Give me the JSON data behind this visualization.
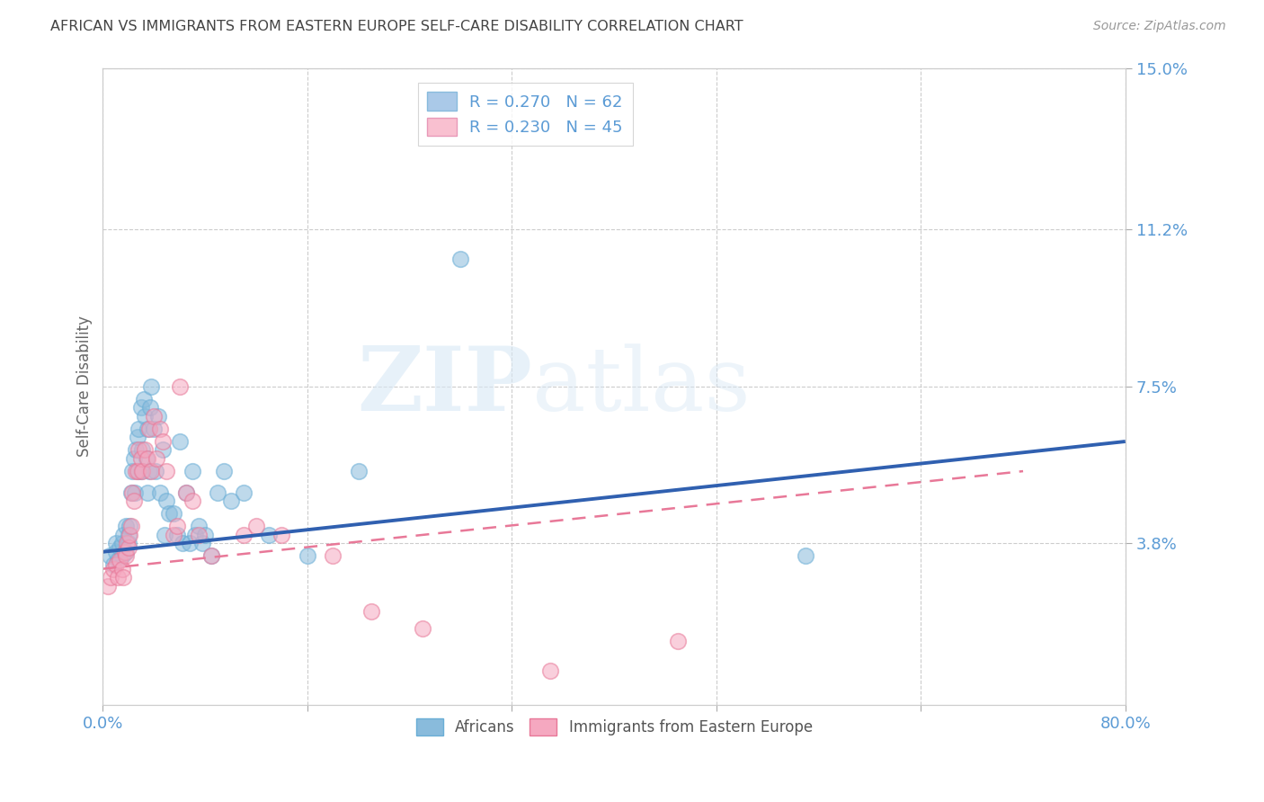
{
  "title": "AFRICAN VS IMMIGRANTS FROM EASTERN EUROPE SELF-CARE DISABILITY CORRELATION CHART",
  "source": "Source: ZipAtlas.com",
  "ylabel": "Self-Care Disability",
  "xmin": 0.0,
  "xmax": 0.8,
  "ymin": 0.0,
  "ymax": 0.15,
  "yticks": [
    0.038,
    0.075,
    0.112,
    0.15
  ],
  "ytick_labels": [
    "3.8%",
    "7.5%",
    "11.2%",
    "15.0%"
  ],
  "xticks": [
    0.0,
    0.16,
    0.32,
    0.48,
    0.64,
    0.8
  ],
  "xtick_labels": [
    "0.0%",
    "",
    "",
    "",
    "",
    "80.0%"
  ],
  "watermark_zip": "ZIP",
  "watermark_atlas": "atlas",
  "legend_label1": "R = 0.270   N = 62",
  "legend_label2": "R = 0.230   N = 45",
  "legend_color1": "#aac9e8",
  "legend_color2": "#f9c0d0",
  "series1_label": "Africans",
  "series2_label": "Immigrants from Eastern Europe",
  "series1_color": "#89bbdc",
  "series2_color": "#f5a8c0",
  "series1_edge": "#6aaed6",
  "series2_edge": "#e87898",
  "series1_line_color": "#3060b0",
  "series2_line_color": "#e87898",
  "africans_x": [
    0.005,
    0.008,
    0.01,
    0.01,
    0.012,
    0.013,
    0.015,
    0.015,
    0.016,
    0.018,
    0.018,
    0.02,
    0.02,
    0.021,
    0.022,
    0.023,
    0.024,
    0.025,
    0.026,
    0.027,
    0.028,
    0.028,
    0.03,
    0.03,
    0.031,
    0.032,
    0.033,
    0.034,
    0.035,
    0.035,
    0.036,
    0.037,
    0.038,
    0.04,
    0.041,
    0.043,
    0.045,
    0.047,
    0.048,
    0.05,
    0.052,
    0.055,
    0.058,
    0.06,
    0.062,
    0.065,
    0.068,
    0.07,
    0.072,
    0.075,
    0.078,
    0.08,
    0.085,
    0.09,
    0.095,
    0.1,
    0.11,
    0.13,
    0.16,
    0.2,
    0.28,
    0.55
  ],
  "africans_y": [
    0.035,
    0.033,
    0.036,
    0.038,
    0.034,
    0.037,
    0.035,
    0.038,
    0.04,
    0.036,
    0.042,
    0.038,
    0.04,
    0.042,
    0.05,
    0.055,
    0.058,
    0.05,
    0.06,
    0.063,
    0.055,
    0.065,
    0.055,
    0.07,
    0.06,
    0.072,
    0.068,
    0.058,
    0.05,
    0.065,
    0.055,
    0.07,
    0.075,
    0.065,
    0.055,
    0.068,
    0.05,
    0.06,
    0.04,
    0.048,
    0.045,
    0.045,
    0.04,
    0.062,
    0.038,
    0.05,
    0.038,
    0.055,
    0.04,
    0.042,
    0.038,
    0.04,
    0.035,
    0.05,
    0.055,
    0.048,
    0.05,
    0.04,
    0.035,
    0.055,
    0.105,
    0.035
  ],
  "eastern_x": [
    0.004,
    0.006,
    0.008,
    0.01,
    0.012,
    0.013,
    0.015,
    0.016,
    0.017,
    0.018,
    0.019,
    0.02,
    0.021,
    0.022,
    0.023,
    0.024,
    0.026,
    0.027,
    0.028,
    0.03,
    0.031,
    0.033,
    0.035,
    0.036,
    0.038,
    0.04,
    0.042,
    0.045,
    0.047,
    0.05,
    0.055,
    0.058,
    0.06,
    0.065,
    0.07,
    0.075,
    0.085,
    0.11,
    0.12,
    0.14,
    0.18,
    0.21,
    0.25,
    0.35,
    0.45
  ],
  "eastern_y": [
    0.028,
    0.03,
    0.032,
    0.033,
    0.03,
    0.034,
    0.032,
    0.03,
    0.036,
    0.035,
    0.038,
    0.037,
    0.04,
    0.042,
    0.05,
    0.048,
    0.055,
    0.055,
    0.06,
    0.058,
    0.055,
    0.06,
    0.058,
    0.065,
    0.055,
    0.068,
    0.058,
    0.065,
    0.062,
    0.055,
    0.04,
    0.042,
    0.075,
    0.05,
    0.048,
    0.04,
    0.035,
    0.04,
    0.042,
    0.04,
    0.035,
    0.022,
    0.018,
    0.008,
    0.015
  ],
  "africans_trend_x": [
    0.0,
    0.8
  ],
  "africans_trend_y": [
    0.036,
    0.062
  ],
  "eastern_trend_x": [
    0.0,
    0.72
  ],
  "eastern_trend_y": [
    0.032,
    0.055
  ],
  "background_color": "#ffffff",
  "grid_color": "#cccccc",
  "title_color": "#444444",
  "tick_label_color": "#5b9bd5"
}
